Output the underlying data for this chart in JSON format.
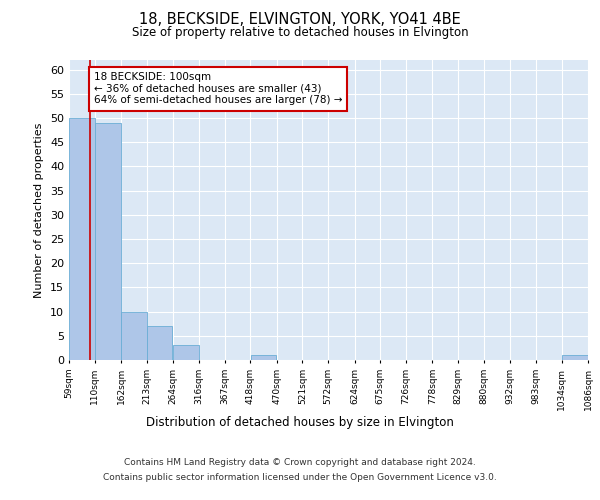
{
  "title": "18, BECKSIDE, ELVINGTON, YORK, YO41 4BE",
  "subtitle": "Size of property relative to detached houses in Elvington",
  "xlabel": "Distribution of detached houses by size in Elvington",
  "ylabel": "Number of detached properties",
  "bin_edges": [
    59,
    110,
    162,
    213,
    264,
    316,
    367,
    418,
    470,
    521,
    572,
    624,
    675,
    726,
    778,
    829,
    880,
    932,
    983,
    1034,
    1086
  ],
  "bar_heights": [
    50,
    49,
    10,
    7,
    3,
    0,
    0,
    1,
    0,
    0,
    0,
    0,
    0,
    0,
    0,
    0,
    0,
    0,
    0,
    1
  ],
  "bar_color": "#aec6e8",
  "bar_edge_color": "#6baed6",
  "property_line_x": 100,
  "property_line_color": "#cc0000",
  "annotation_text": "18 BECKSIDE: 100sqm\n← 36% of detached houses are smaller (43)\n64% of semi-detached houses are larger (78) →",
  "annotation_box_color": "#ffffff",
  "annotation_box_edge_color": "#cc0000",
  "ylim": [
    0,
    62
  ],
  "yticks": [
    0,
    5,
    10,
    15,
    20,
    25,
    30,
    35,
    40,
    45,
    50,
    55,
    60
  ],
  "background_color": "#dce8f5",
  "grid_color": "#ffffff",
  "footer_line1": "Contains HM Land Registry data © Crown copyright and database right 2024.",
  "footer_line2": "Contains public sector information licensed under the Open Government Licence v3.0."
}
